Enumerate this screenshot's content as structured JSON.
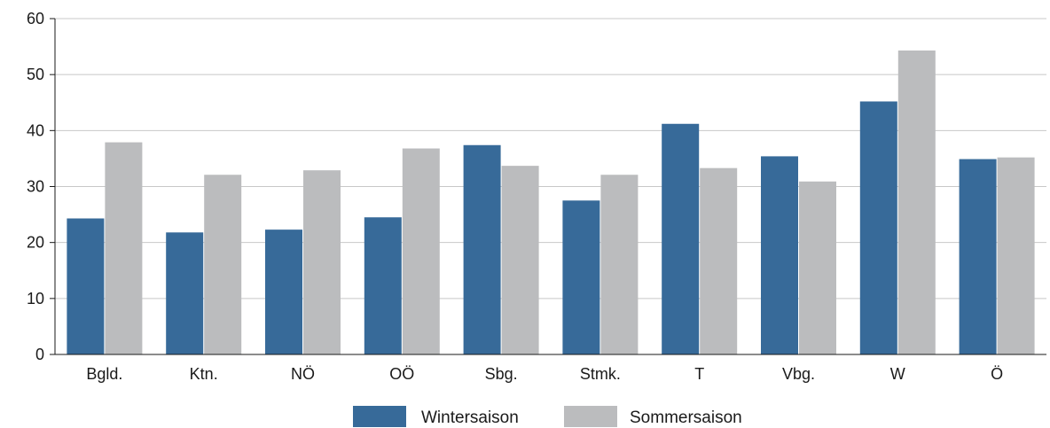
{
  "chart_data": {
    "type": "bar",
    "categories": [
      "Bgld.",
      "Ktn.",
      "NÖ",
      "OÖ",
      "Sbg.",
      "Stmk.",
      "T",
      "Vbg.",
      "W",
      "Ö"
    ],
    "series": [
      {
        "name": "Wintersaison",
        "color": "#376a99",
        "values": [
          24.3,
          21.8,
          22.3,
          24.5,
          37.4,
          27.5,
          41.2,
          35.4,
          45.2,
          34.9
        ]
      },
      {
        "name": "Sommersaison",
        "color": "#bbbcbe",
        "values": [
          37.9,
          32.1,
          32.9,
          36.8,
          33.7,
          32.1,
          33.3,
          30.9,
          54.3,
          35.2
        ]
      }
    ],
    "ylim": [
      0,
      60
    ],
    "yticks": [
      0,
      10,
      20,
      30,
      40,
      50,
      60
    ],
    "grid": true,
    "legend": "bottom-center"
  }
}
